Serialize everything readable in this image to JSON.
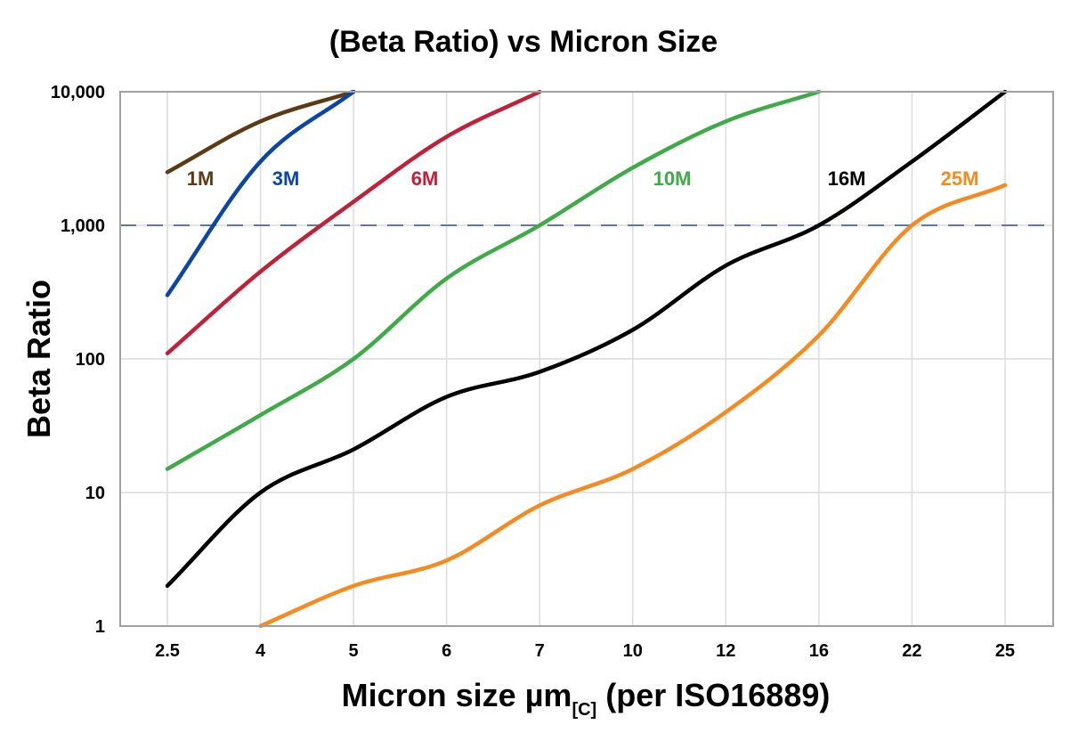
{
  "chart_data": {
    "type": "line",
    "title": "(Beta Ratio) vs Micron Size",
    "xlabel_main": "Micron size µm",
    "xlabel_sub": "[C]",
    "xlabel_tail": " (per ISO16889)",
    "ylabel": "Beta Ratio",
    "y_scale": "log",
    "ylim": [
      1,
      10000
    ],
    "y_ticks": [
      1,
      10,
      100,
      1000,
      10000
    ],
    "y_tick_labels": [
      "1",
      "10",
      "100",
      "1,000",
      "10,000"
    ],
    "categories": [
      "2.5",
      "4",
      "5",
      "6",
      "7",
      "10",
      "12",
      "16",
      "22",
      "25"
    ],
    "grid": true,
    "reference_line": {
      "y": 1000,
      "style": "dashed",
      "color": "#4a6a9a"
    },
    "series": [
      {
        "name": "1M",
        "color": "#5c3a14",
        "values": [
          2500,
          6000,
          10000,
          null,
          null,
          null,
          null,
          null,
          null,
          null
        ]
      },
      {
        "name": "3M",
        "color": "#0a45a8",
        "values": [
          300,
          3000,
          10000,
          null,
          null,
          null,
          null,
          null,
          null,
          null
        ]
      },
      {
        "name": "6M",
        "color": "#c22039",
        "values": [
          110,
          450,
          1500,
          4600,
          10000,
          null,
          null,
          null,
          null,
          null
        ]
      },
      {
        "name": "10M",
        "color": "#3fab48",
        "values": [
          15,
          38,
          100,
          400,
          1000,
          2700,
          6000,
          10000,
          null,
          null
        ]
      },
      {
        "name": "16M",
        "color": "#000000",
        "values": [
          2,
          10,
          21,
          52,
          80,
          165,
          500,
          1000,
          3000,
          10000
        ]
      },
      {
        "name": "25M",
        "color": "#f68a1f",
        "values": [
          null,
          1,
          2,
          3.1,
          8,
          15,
          40,
          150,
          1000,
          2000
        ]
      }
    ]
  }
}
